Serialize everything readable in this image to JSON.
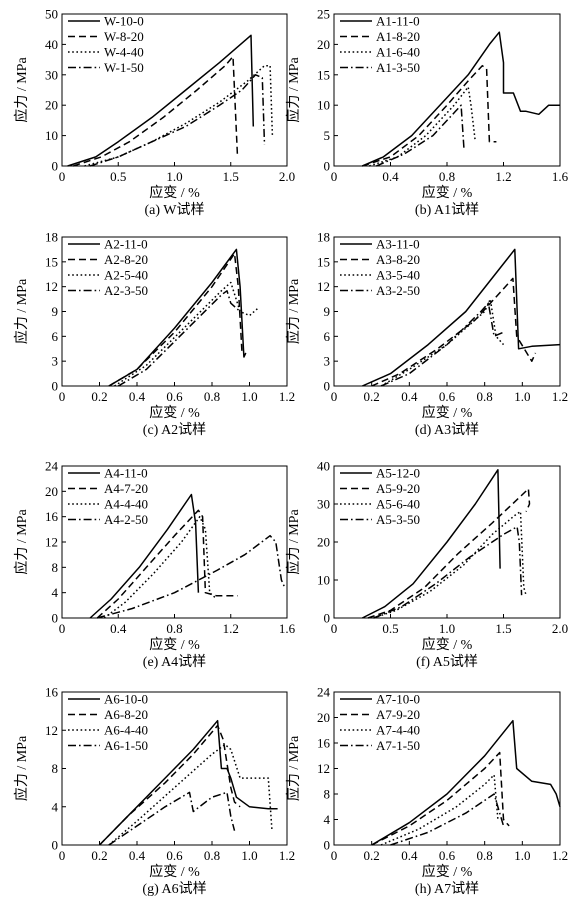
{
  "chart_data": [
    {
      "type": "line",
      "title": "(a) W试样",
      "xlabel": "应变 / %",
      "ylabel": "应力 / MPa",
      "xlim": [
        0,
        2.0
      ],
      "ylim": [
        0,
        50
      ],
      "xticks": [
        0,
        0.5,
        1.0,
        1.5,
        2.0
      ],
      "xtick_labels": [
        "0",
        "0.5",
        "1.0",
        "1.5",
        "2.0"
      ],
      "yticks": [
        0,
        10,
        20,
        30,
        40,
        50
      ],
      "ytick_labels": [
        "0",
        "10",
        "20",
        "30",
        "40",
        "50"
      ],
      "legend_position": "top-left",
      "series": [
        {
          "name": "W-10-0",
          "style": "solid",
          "x": [
            0.05,
            0.3,
            0.5,
            0.8,
            1.1,
            1.4,
            1.68,
            1.7
          ],
          "y": [
            0,
            3,
            8,
            16,
            25,
            34,
            43,
            13
          ]
        },
        {
          "name": "W-8-20",
          "style": "dashed",
          "x": [
            0.1,
            0.35,
            0.6,
            0.9,
            1.2,
            1.45,
            1.52,
            1.56
          ],
          "y": [
            0,
            3,
            8,
            16,
            25,
            33,
            36,
            3
          ]
        },
        {
          "name": "W-4-40",
          "style": "dotted",
          "x": [
            0.2,
            0.5,
            0.8,
            1.1,
            1.4,
            1.65,
            1.8,
            1.85,
            1.87
          ],
          "y": [
            0,
            3,
            8,
            14,
            21,
            28,
            33,
            33,
            10
          ]
        },
        {
          "name": "W-1-50",
          "style": "dashdot",
          "x": [
            0.25,
            0.5,
            0.8,
            1.1,
            1.4,
            1.6,
            1.72,
            1.78,
            1.8
          ],
          "y": [
            0,
            3,
            8,
            13,
            20,
            25,
            30,
            29,
            7
          ]
        }
      ]
    },
    {
      "type": "line",
      "title": "(b) A1试样",
      "xlabel": "应变 / %",
      "ylabel": "应力 / MPa",
      "xlim": [
        0,
        1.6
      ],
      "ylim": [
        0,
        25
      ],
      "xticks": [
        0,
        0.4,
        0.8,
        1.2,
        1.6
      ],
      "xtick_labels": [
        "0",
        "0.4",
        "0.8",
        "1.2",
        "1.6"
      ],
      "yticks": [
        0,
        5,
        10,
        15,
        20,
        25
      ],
      "ytick_labels": [
        "0",
        "5",
        "10",
        "15",
        "20",
        "25"
      ],
      "legend_position": "top-left",
      "series": [
        {
          "name": "A1-11-0",
          "style": "solid",
          "x": [
            0.2,
            0.35,
            0.55,
            0.75,
            0.95,
            1.1,
            1.17,
            1.2,
            1.2,
            1.27,
            1.32,
            1.36,
            1.45,
            1.52,
            1.6
          ],
          "y": [
            0,
            1.5,
            5,
            10,
            15,
            20,
            22,
            17,
            12,
            12,
            9,
            9,
            8.5,
            10,
            10
          ]
        },
        {
          "name": "A1-8-20",
          "style": "dashed",
          "x": [
            0.2,
            0.4,
            0.6,
            0.8,
            0.95,
            1.05,
            1.08,
            1.1,
            1.15
          ],
          "y": [
            0,
            1.5,
            5,
            10,
            14,
            16.5,
            16,
            4,
            4
          ]
        },
        {
          "name": "A1-6-40",
          "style": "dotted",
          "x": [
            0.25,
            0.45,
            0.65,
            0.85,
            0.95,
            0.97,
            1.0
          ],
          "y": [
            0,
            1.5,
            5,
            10,
            13,
            10,
            4
          ]
        },
        {
          "name": "A1-3-50",
          "style": "dashdot",
          "x": [
            0.3,
            0.5,
            0.7,
            0.86,
            0.9,
            0.92
          ],
          "y": [
            0,
            2,
            5,
            9,
            10,
            3
          ]
        }
      ]
    },
    {
      "type": "line",
      "title": "(c) A2试样",
      "xlabel": "应变 / %",
      "ylabel": "应力 / MPa",
      "xlim": [
        0,
        1.2
      ],
      "ylim": [
        0,
        18
      ],
      "xticks": [
        0,
        0.2,
        0.4,
        0.6,
        0.8,
        1.0,
        1.2
      ],
      "xtick_labels": [
        "0",
        "0.2",
        "0.4",
        "0.6",
        "0.8",
        "1.0",
        "1.2"
      ],
      "yticks": [
        0,
        3,
        6,
        9,
        12,
        15,
        18
      ],
      "ytick_labels": [
        "0",
        "3",
        "6",
        "9",
        "12",
        "15",
        "18"
      ],
      "legend_position": "top-left",
      "series": [
        {
          "name": "A2-11-0",
          "style": "solid",
          "x": [
            0.25,
            0.4,
            0.6,
            0.8,
            0.93,
            0.95,
            0.97,
            0.98
          ],
          "y": [
            0,
            2,
            7,
            12.5,
            16.5,
            12,
            3.5,
            4
          ]
        },
        {
          "name": "A2-8-20",
          "style": "dashed",
          "x": [
            0.25,
            0.4,
            0.6,
            0.8,
            0.92,
            0.94,
            0.96
          ],
          "y": [
            0,
            2,
            6.5,
            12,
            16,
            12,
            4
          ]
        },
        {
          "name": "A2-5-40",
          "style": "dotted",
          "x": [
            0.28,
            0.45,
            0.65,
            0.85,
            0.9,
            0.95,
            1.0,
            1.05
          ],
          "y": [
            0,
            2.5,
            7,
            11.5,
            12.5,
            9,
            8.5,
            9.5
          ]
        },
        {
          "name": "A2-3-50",
          "style": "dashdot",
          "x": [
            0.3,
            0.45,
            0.65,
            0.85,
            0.88,
            0.9,
            0.95
          ],
          "y": [
            0,
            2,
            6.5,
            11,
            11.5,
            10,
            9
          ]
        }
      ]
    },
    {
      "type": "line",
      "title": "(d) A3试样",
      "xlabel": "应变 / %",
      "ylabel": "应力 / MPa",
      "xlim": [
        0,
        1.2
      ],
      "ylim": [
        0,
        18
      ],
      "xticks": [
        0,
        0.2,
        0.4,
        0.6,
        0.8,
        1.0,
        1.2
      ],
      "xtick_labels": [
        "0",
        "0.2",
        "0.4",
        "0.6",
        "0.8",
        "1.0",
        "1.2"
      ],
      "yticks": [
        0,
        3,
        6,
        9,
        12,
        15,
        18
      ],
      "ytick_labels": [
        "0",
        "3",
        "6",
        "9",
        "12",
        "15",
        "18"
      ],
      "legend_position": "top-left",
      "series": [
        {
          "name": "A3-11-0",
          "style": "solid",
          "x": [
            0.15,
            0.3,
            0.5,
            0.7,
            0.96,
            0.98,
            1.05,
            1.2
          ],
          "y": [
            0,
            1.5,
            5,
            9,
            16.5,
            4.5,
            4.8,
            5
          ]
        },
        {
          "name": "A3-8-20",
          "style": "dashed",
          "x": [
            0.2,
            0.35,
            0.55,
            0.75,
            0.95,
            0.97,
            1.05,
            1.07
          ],
          "y": [
            0,
            1.5,
            4.5,
            8,
            13,
            6,
            3,
            4
          ]
        },
        {
          "name": "A3-5-40",
          "style": "dotted",
          "x": [
            0.25,
            0.4,
            0.6,
            0.8,
            0.83,
            0.86,
            0.9
          ],
          "y": [
            0,
            2,
            5,
            9,
            10.5,
            6,
            5
          ]
        },
        {
          "name": "A3-2-50",
          "style": "dashdot",
          "x": [
            0.25,
            0.4,
            0.6,
            0.78,
            0.82,
            0.85,
            0.9
          ],
          "y": [
            0,
            1.5,
            5,
            9,
            10,
            6,
            6.5
          ]
        }
      ]
    },
    {
      "type": "line",
      "title": "(e) A4试样",
      "xlabel": "应变 / %",
      "ylabel": "应力 / MPa",
      "xlim": [
        0,
        1.6
      ],
      "ylim": [
        0,
        24
      ],
      "xticks": [
        0,
        0.4,
        0.8,
        1.2,
        1.6
      ],
      "xtick_labels": [
        "0",
        "0.4",
        "0.8",
        "1.2",
        "1.6"
      ],
      "yticks": [
        0,
        4,
        8,
        12,
        16,
        20,
        24
      ],
      "ytick_labels": [
        "0",
        "4",
        "8",
        "12",
        "16",
        "20",
        "24"
      ],
      "legend_position": "top-left",
      "series": [
        {
          "name": "A4-11-0",
          "style": "solid",
          "x": [
            0.2,
            0.35,
            0.55,
            0.75,
            0.92,
            0.95,
            0.97
          ],
          "y": [
            0,
            3,
            8,
            14,
            19.5,
            15,
            4
          ]
        },
        {
          "name": "A4-7-20",
          "style": "dashed",
          "x": [
            0.25,
            0.4,
            0.6,
            0.8,
            0.97,
            1.0,
            1.02,
            1.1,
            1.25
          ],
          "y": [
            0,
            3,
            8,
            13,
            17,
            16,
            4,
            3.5,
            3.5
          ]
        },
        {
          "name": "A4-4-40",
          "style": "dotted",
          "x": [
            0.3,
            0.45,
            0.65,
            0.85,
            0.98,
            1.02,
            1.05,
            1.1
          ],
          "y": [
            0,
            2.5,
            7,
            12,
            16,
            14,
            4,
            3
          ]
        },
        {
          "name": "A4-2-50",
          "style": "dashdot",
          "x": [
            0.25,
            0.5,
            0.8,
            1.1,
            1.3,
            1.48,
            1.52,
            1.56,
            1.58
          ],
          "y": [
            0,
            1.5,
            4,
            7.5,
            10,
            13,
            12,
            6,
            5
          ]
        }
      ]
    },
    {
      "type": "line",
      "title": "(f) A5试样",
      "xlabel": "应变 / %",
      "ylabel": "应力 / MPa",
      "xlim": [
        0,
        2.0
      ],
      "ylim": [
        0,
        40
      ],
      "xticks": [
        0,
        0.5,
        1.0,
        1.5,
        2.0
      ],
      "xtick_labels": [
        "0",
        "0.5",
        "1.0",
        "1.5",
        "2.0"
      ],
      "yticks": [
        0,
        10,
        20,
        30,
        40
      ],
      "ytick_labels": [
        "0",
        "10",
        "20",
        "30",
        "40"
      ],
      "legend_position": "top-left",
      "series": [
        {
          "name": "A5-12-0",
          "style": "solid",
          "x": [
            0.25,
            0.45,
            0.7,
            1.0,
            1.25,
            1.45,
            1.47
          ],
          "y": [
            0,
            3,
            9,
            20,
            30,
            39,
            13
          ]
        },
        {
          "name": "A5-9-20",
          "style": "dashed",
          "x": [
            0.3,
            0.5,
            0.8,
            1.1,
            1.4,
            1.65,
            1.72,
            1.73,
            1.7
          ],
          "y": [
            0,
            2,
            8,
            17,
            25,
            32,
            34,
            30,
            28
          ]
        },
        {
          "name": "A5-6-40",
          "style": "dotted",
          "x": [
            0.35,
            0.55,
            0.85,
            1.15,
            1.4,
            1.6,
            1.65,
            1.68,
            1.7
          ],
          "y": [
            0,
            2,
            7,
            14,
            22,
            27,
            28,
            8,
            6
          ]
        },
        {
          "name": "A5-3-50",
          "style": "dashdot",
          "x": [
            0.35,
            0.6,
            0.9,
            1.2,
            1.5,
            1.62,
            1.64,
            1.66
          ],
          "y": [
            0,
            3,
            9,
            16,
            22,
            24,
            20,
            6
          ]
        }
      ]
    },
    {
      "type": "line",
      "title": "(g) A6试样",
      "xlabel": "应变 / %",
      "ylabel": "应力 / MPa",
      "xlim": [
        0,
        1.2
      ],
      "ylim": [
        0,
        16
      ],
      "xticks": [
        0,
        0.2,
        0.4,
        0.6,
        0.8,
        1.0,
        1.2
      ],
      "xtick_labels": [
        "0",
        "0.2",
        "0.4",
        "0.6",
        "0.8",
        "1.0",
        "1.2"
      ],
      "yticks": [
        0,
        4,
        8,
        12,
        16
      ],
      "ytick_labels": [
        "0",
        "4",
        "8",
        "12",
        "16"
      ],
      "legend_position": "top-left",
      "series": [
        {
          "name": "A6-10-0",
          "style": "solid",
          "x": [
            0.2,
            0.35,
            0.55,
            0.7,
            0.83,
            0.85,
            0.88,
            0.9,
            0.93,
            1.0,
            1.1,
            1.15
          ],
          "y": [
            0,
            3,
            7,
            10,
            13,
            8,
            8,
            7,
            5,
            4,
            3.8,
            3.8
          ]
        },
        {
          "name": "A6-8-20",
          "style": "dashed",
          "x": [
            0.2,
            0.35,
            0.55,
            0.7,
            0.83,
            0.86,
            0.9,
            0.92,
            0.95
          ],
          "y": [
            0,
            3,
            6.5,
            9.5,
            12.5,
            11,
            6,
            4.5,
            4
          ]
        },
        {
          "name": "A6-4-40",
          "style": "dotted",
          "x": [
            0.25,
            0.4,
            0.6,
            0.8,
            0.87,
            0.9,
            0.95,
            1.0,
            1.05,
            1.1,
            1.12
          ],
          "y": [
            0,
            2.5,
            6,
            9.5,
            10.5,
            10,
            7,
            7,
            7,
            7,
            1.5
          ]
        },
        {
          "name": "A6-1-50",
          "style": "dashdot",
          "x": [
            0.25,
            0.4,
            0.55,
            0.68,
            0.7,
            0.8,
            0.88,
            0.9,
            0.92
          ],
          "y": [
            0,
            2,
            4,
            5.5,
            3.5,
            5,
            5.5,
            3,
            1.5
          ]
        }
      ]
    },
    {
      "type": "line",
      "title": "(h) A7试样",
      "xlabel": "应变 / %",
      "ylabel": "应力 / MPa",
      "xlim": [
        0,
        1.2
      ],
      "ylim": [
        0,
        24
      ],
      "xticks": [
        0,
        0.2,
        0.4,
        0.6,
        0.8,
        1.0,
        1.2
      ],
      "xtick_labels": [
        "0",
        "0.2",
        "0.4",
        "0.6",
        "0.8",
        "1.0",
        "1.2"
      ],
      "yticks": [
        0,
        4,
        8,
        12,
        16,
        20,
        24
      ],
      "ytick_labels": [
        "0",
        "4",
        "8",
        "12",
        "16",
        "20",
        "24"
      ],
      "legend_position": "top-left",
      "series": [
        {
          "name": "A7-10-0",
          "style": "solid",
          "x": [
            0.2,
            0.4,
            0.6,
            0.8,
            0.95,
            0.97,
            1.05,
            1.15,
            1.18,
            1.2
          ],
          "y": [
            0,
            3.5,
            8,
            14,
            19.5,
            12,
            10,
            9.5,
            8,
            6
          ]
        },
        {
          "name": "A7-9-20",
          "style": "dashed",
          "x": [
            0.2,
            0.4,
            0.6,
            0.8,
            0.88,
            0.9,
            0.93
          ],
          "y": [
            0,
            3,
            7,
            12,
            14.5,
            4,
            3
          ]
        },
        {
          "name": "A7-4-40",
          "style": "dotted",
          "x": [
            0.25,
            0.45,
            0.65,
            0.8,
            0.85,
            0.87
          ],
          "y": [
            0,
            2.5,
            6,
            9.5,
            11,
            4
          ]
        },
        {
          "name": "A7-1-50",
          "style": "dashdot",
          "x": [
            0.3,
            0.5,
            0.7,
            0.8,
            0.85,
            0.9
          ],
          "y": [
            0,
            2,
            5,
            7,
            8,
            3
          ]
        }
      ]
    }
  ]
}
